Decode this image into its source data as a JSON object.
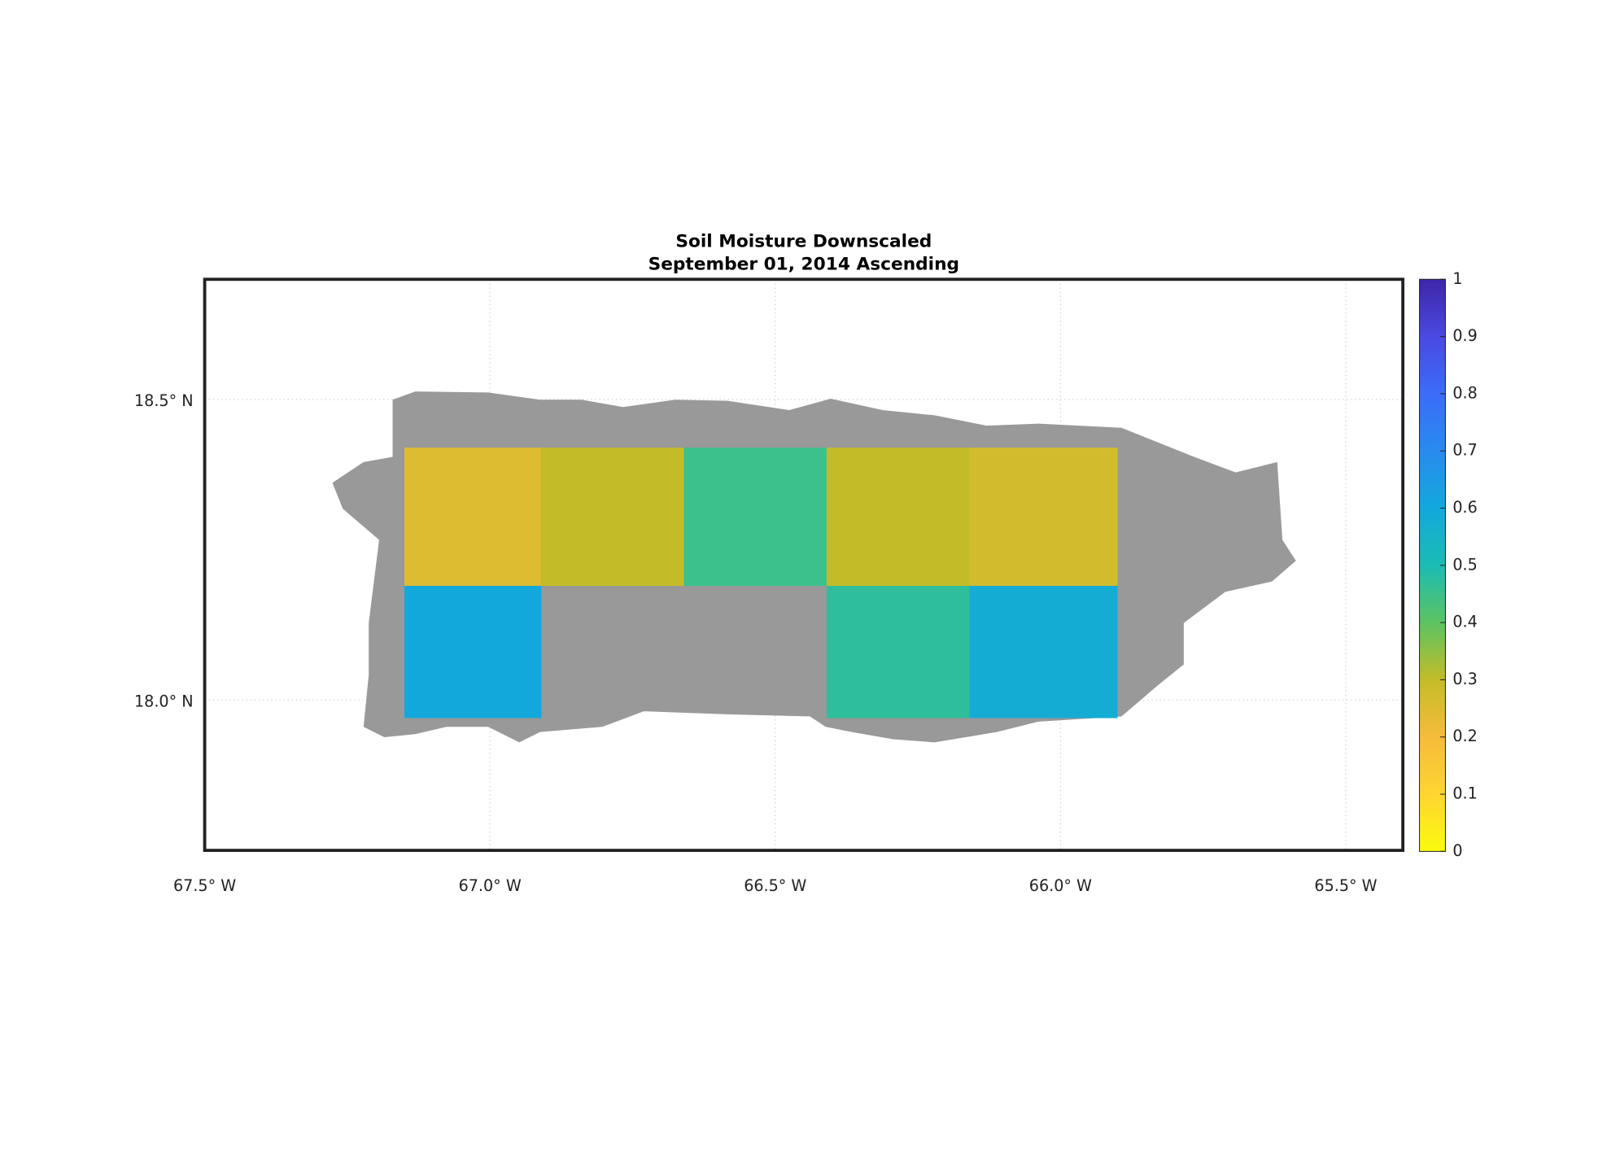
{
  "chart_data": {
    "type": "map",
    "title": "Soil Moisture Downscaled",
    "subtitle": "September 01, 2014 Ascending",
    "xlim": [
      -67.5,
      -65.4
    ],
    "ylim": [
      17.75,
      18.7
    ],
    "xticks": [
      {
        "value": -67.5,
        "label": "67.5° W"
      },
      {
        "value": -67.0,
        "label": "67.0° W"
      },
      {
        "value": -66.5,
        "label": "66.5° W"
      },
      {
        "value": -66.0,
        "label": "66.0° W"
      },
      {
        "value": -65.5,
        "label": "65.5° W"
      }
    ],
    "yticks": [
      {
        "value": 18.0,
        "label": "18.0° N"
      },
      {
        "value": 18.5,
        "label": "18.5° N"
      }
    ],
    "grid": true,
    "land_color": "#999999",
    "colorbar_lim": [
      0,
      1
    ],
    "colorbar_ticks": [
      0,
      0.1,
      0.2,
      0.3,
      0.4,
      0.5,
      0.6,
      0.7,
      0.8,
      0.9,
      1
    ],
    "colormap": [
      "#f9fb0e",
      "#fed531",
      "#f6bb3c",
      "#c3bc28",
      "#5cc363",
      "#1bbcb4",
      "#13a8dc",
      "#288bef",
      "#3c6cf8",
      "#4a49e0",
      "#3e26a8"
    ],
    "tiles": [
      {
        "lon": [
          -67.15,
          -66.91
        ],
        "lat": [
          18.19,
          18.42
        ],
        "value": 0.25
      },
      {
        "lon": [
          -66.91,
          -66.66
        ],
        "lat": [
          18.19,
          18.42
        ],
        "value": 0.3
      },
      {
        "lon": [
          -66.66,
          -66.41
        ],
        "lat": [
          18.19,
          18.42
        ],
        "value": 0.45
      },
      {
        "lon": [
          -66.41,
          -66.16
        ],
        "lat": [
          18.19,
          18.42
        ],
        "value": 0.3
      },
      {
        "lon": [
          -66.16,
          -65.9
        ],
        "lat": [
          18.19,
          18.42
        ],
        "value": 0.27
      },
      {
        "lon": [
          -67.15,
          -66.91
        ],
        "lat": [
          17.97,
          18.19
        ],
        "value": 0.6
      },
      {
        "lon": [
          -66.41,
          -66.16
        ],
        "lat": [
          17.97,
          18.19
        ],
        "value": 0.47
      },
      {
        "lon": [
          -66.16,
          -65.9
        ],
        "lat": [
          17.97,
          18.19
        ],
        "value": 0.58
      }
    ]
  }
}
